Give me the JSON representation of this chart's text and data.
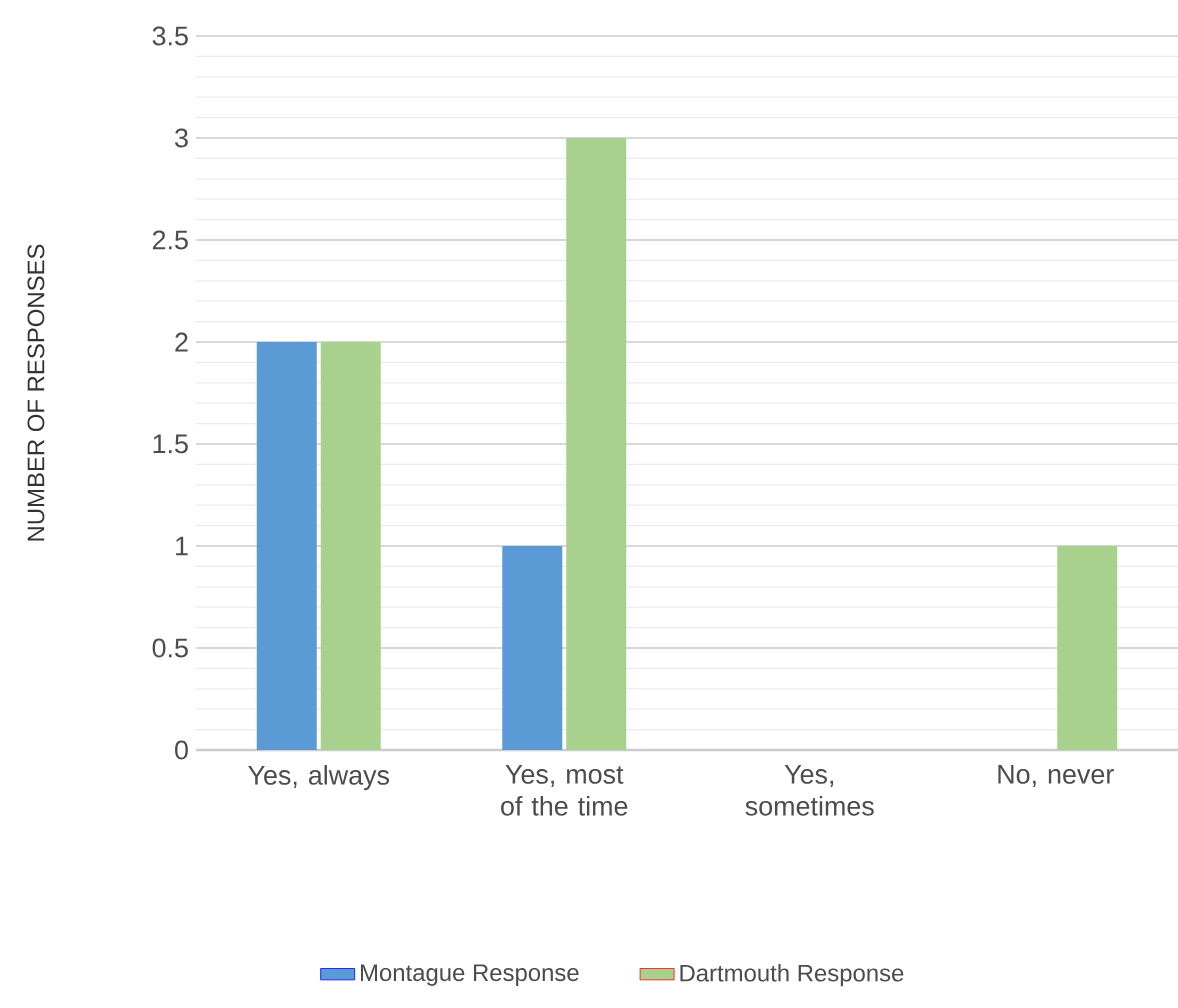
{
  "chart_data": {
    "type": "bar",
    "ylabel": "NUMBER OF RESPONSES",
    "categories": [
      "Yes, always",
      "Yes, most of the time",
      "Yes, sometimes",
      "No, never"
    ],
    "series": [
      {
        "name": "Montague Response",
        "color": "#5b9bd5",
        "values": [
          2,
          1,
          0,
          0
        ]
      },
      {
        "name": "Dartmouth Response",
        "color": "#a9d18e",
        "values": [
          2,
          3,
          0,
          1
        ]
      }
    ],
    "ylim": [
      0,
      3.5
    ],
    "yticks": [
      0,
      0.5,
      1,
      1.5,
      2,
      2.5,
      3,
      3.5
    ],
    "grid": "y",
    "legend": "bottom"
  }
}
